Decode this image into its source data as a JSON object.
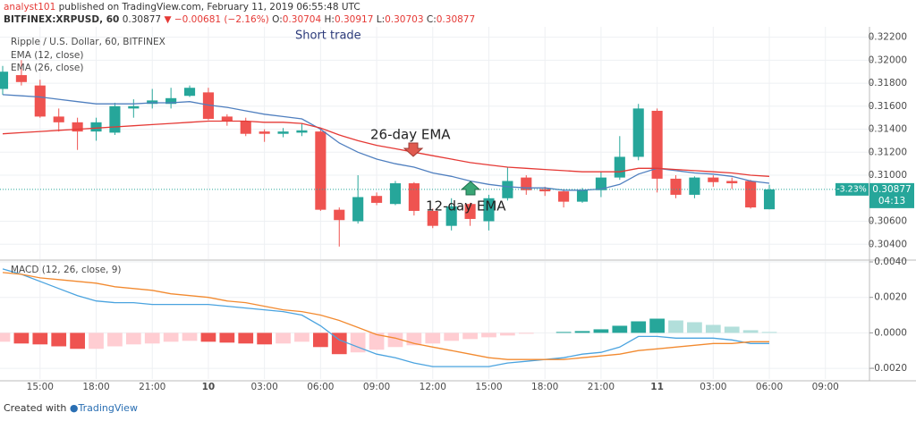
{
  "header": {
    "author": "analyst101",
    "published": "published on TradingView.com, February 11, 2019 06:55:48 UTC",
    "symbol": "BITFINEX:XRPUSD, 60",
    "price": "0.30877",
    "change": "▼ −0.00681 (−2.16%)",
    "ohlc": [
      {
        "label": "O:",
        "value": "0.30704"
      },
      {
        "label": "H:",
        "value": "0.30917"
      },
      {
        "label": "L:",
        "value": "0.30703"
      },
      {
        "label": "C:",
        "value": "0.30877"
      }
    ]
  },
  "footer": {
    "text": "Created with",
    "brand": "TradingView"
  },
  "chart_data": [
    {
      "type": "candlestick",
      "title": "Ripple / U.S. Dollar, 60, BITFINEX",
      "annotations": [
        "Short trade",
        "26-day EMA",
        "12-day EMA"
      ],
      "up_color": "#26a69a",
      "down_color": "#ef5350",
      "open": [
        0.3175,
        0.3187,
        0.3178,
        0.3151,
        0.3146,
        0.3138,
        0.3137,
        0.3158,
        0.3162,
        0.3162,
        0.3169,
        0.3172,
        0.3151,
        0.3147,
        0.3138,
        0.3136,
        0.3137,
        0.3138,
        0.307,
        0.306,
        0.3082,
        0.3075,
        0.3093,
        0.3069,
        0.3056,
        0.3075,
        0.306,
        0.308,
        0.3098,
        0.3088,
        0.3086,
        0.3077,
        0.3087,
        0.3098,
        0.3116,
        0.3156,
        0.3097,
        0.3083,
        0.3098,
        0.3095,
        0.3095,
        0.30704,
        null,
        null,
        null,
        null,
        null
      ],
      "high": [
        0.3195,
        0.32,
        0.3183,
        0.3158,
        0.315,
        0.315,
        0.3163,
        0.3166,
        0.3175,
        0.3176,
        0.3178,
        0.3176,
        0.3153,
        0.315,
        0.314,
        0.3141,
        0.3145,
        0.314,
        0.3072,
        0.31,
        0.3085,
        0.3095,
        0.3094,
        0.3071,
        0.308,
        0.3076,
        0.3083,
        0.3107,
        0.31,
        0.309,
        0.3088,
        0.3089,
        0.3103,
        0.3134,
        0.3162,
        0.3158,
        0.31,
        0.3099,
        0.31,
        0.3098,
        0.3096,
        0.30917,
        null,
        null,
        null,
        null,
        null
      ],
      "low": [
        0.317,
        0.3178,
        0.315,
        0.3138,
        0.3122,
        0.313,
        0.3135,
        0.315,
        0.3158,
        0.3158,
        0.3168,
        0.3148,
        0.3143,
        0.3134,
        0.3129,
        0.3133,
        0.3134,
        0.3069,
        0.3038,
        0.3058,
        0.3074,
        0.3074,
        0.3065,
        0.3054,
        0.3052,
        0.3056,
        0.3052,
        0.3078,
        0.3083,
        0.3082,
        0.3072,
        0.3076,
        0.3081,
        0.3096,
        0.3113,
        0.3085,
        0.308,
        0.308,
        0.309,
        0.3088,
        0.3071,
        0.30703,
        null,
        null,
        null,
        null,
        null
      ],
      "close": [
        0.319,
        0.3181,
        0.3151,
        0.3146,
        0.3138,
        0.3146,
        0.316,
        0.316,
        0.3165,
        0.3167,
        0.3176,
        0.3149,
        0.3147,
        0.3136,
        0.3136,
        0.3138,
        0.3139,
        0.307,
        0.3061,
        0.3081,
        0.3076,
        0.3093,
        0.3069,
        0.3056,
        0.3073,
        0.3062,
        0.308,
        0.3095,
        0.3087,
        0.3086,
        0.3077,
        0.3087,
        0.3098,
        0.3116,
        0.3158,
        0.3097,
        0.3083,
        0.3098,
        0.3094,
        0.3093,
        0.3072,
        0.30877,
        null,
        null,
        null,
        null,
        null
      ],
      "series": [
        {
          "name": "EMA (12, close)",
          "color": "#4f7fbf",
          "values": [
            0.317,
            0.3169,
            0.3168,
            0.3166,
            0.3164,
            0.3162,
            0.3162,
            0.3162,
            0.3163,
            0.3163,
            0.3164,
            0.3161,
            0.3159,
            0.3156,
            0.3153,
            0.3151,
            0.3149,
            0.314,
            0.3128,
            0.312,
            0.3114,
            0.311,
            0.3107,
            0.3102,
            0.3099,
            0.3095,
            0.3092,
            0.309,
            0.3089,
            0.3089,
            0.3087,
            0.3087,
            0.3088,
            0.3092,
            0.3101,
            0.3106,
            0.3104,
            0.3102,
            0.3101,
            0.3099,
            0.3095,
            0.3093,
            null,
            null,
            null,
            null,
            null
          ]
        },
        {
          "name": "EMA (26, close)",
          "color": "#e53935",
          "values": [
            0.3136,
            0.3137,
            0.3138,
            0.3139,
            0.314,
            0.3141,
            0.3142,
            0.3143,
            0.3144,
            0.3145,
            0.3146,
            0.3147,
            0.3147,
            0.3147,
            0.3146,
            0.3146,
            0.3145,
            0.3141,
            0.3135,
            0.313,
            0.3126,
            0.3123,
            0.312,
            0.3117,
            0.3114,
            0.3111,
            0.3109,
            0.3107,
            0.3106,
            0.3105,
            0.3104,
            0.3103,
            0.3103,
            0.3103,
            0.3106,
            0.3106,
            0.3105,
            0.3104,
            0.3103,
            0.3102,
            0.31,
            0.3099,
            null,
            null,
            null,
            null,
            null
          ]
        }
      ],
      "last_price": {
        "change": "-3.23%",
        "price": "0.30877",
        "countdown": "04:13",
        "color": "#26a69a"
      },
      "ylim": [
        0.3027,
        0.3229
      ],
      "yticks": [
        {
          "value": 0.322,
          "label": "0.32200"
        },
        {
          "value": 0.32,
          "label": "0.32000"
        },
        {
          "value": 0.318,
          "label": "0.31800"
        },
        {
          "value": 0.316,
          "label": "0.31600"
        },
        {
          "value": 0.314,
          "label": "0.31400"
        },
        {
          "value": 0.312,
          "label": "0.31200"
        },
        {
          "value": 0.31,
          "label": "0.31000"
        },
        {
          "value": 0.306,
          "label": "0.30600"
        },
        {
          "value": 0.304,
          "label": "0.30400"
        }
      ],
      "grid": true
    },
    {
      "type": "macd",
      "title": "MACD (12, 26, close, 9)",
      "categories": [
        null,
        null,
        "15:00",
        null,
        null,
        "18:00",
        null,
        null,
        "21:00",
        null,
        null,
        "10",
        null,
        null,
        "03:00",
        null,
        null,
        "06:00",
        null,
        null,
        "09:00",
        null,
        null,
        "12:00",
        null,
        null,
        "15:00",
        null,
        null,
        "18:00",
        null,
        null,
        "21:00",
        null,
        null,
        "11",
        null,
        null,
        "03:00",
        null,
        null,
        "06:00",
        null,
        null,
        "09:00",
        null,
        null
      ],
      "histogram": {
        "values": [
          -0.0005,
          -0.0006,
          -0.00065,
          -0.00076,
          -0.0009,
          -0.0009,
          -0.00076,
          -0.00065,
          -0.0006,
          -0.0005,
          -0.00045,
          -0.0005,
          -0.00055,
          -0.0006,
          -0.00065,
          -0.0006,
          -0.0005,
          -0.0008,
          -0.0012,
          -0.0011,
          -0.00095,
          -0.0008,
          -0.0007,
          -0.0006,
          -0.00045,
          -0.00035,
          -0.00025,
          -0.00015,
          -5e-05,
          0,
          5e-05,
          0.0001,
          0.0002,
          0.0004,
          0.00065,
          0.0008,
          0.0007,
          0.0006,
          0.00045,
          0.00035,
          0.00015,
          5e-05,
          null,
          null,
          null,
          null,
          null
        ],
        "colors": {
          "negative_falling": "#ef5350",
          "negative_rising": "#ffcdd2",
          "positive_rising": "#26a69a",
          "positive_falling": "#b2dfdb"
        }
      },
      "series": [
        {
          "color": "#4aa3df",
          "values": [
            0.0036,
            0.0033,
            0.0029,
            0.0025,
            0.0021,
            0.0018,
            0.0017,
            0.0017,
            0.0016,
            0.0016,
            0.0016,
            0.0016,
            0.0015,
            0.0014,
            0.0013,
            0.0012,
            0.001,
            0.0004,
            -0.0004,
            -0.0008,
            -0.0012,
            -0.0014,
            -0.0017,
            -0.0019,
            -0.0019,
            -0.0019,
            -0.0019,
            -0.0017,
            -0.0016,
            -0.0015,
            -0.0014,
            -0.0012,
            -0.0011,
            -0.0008,
            -0.0002,
            -0.0002,
            -0.0003,
            -0.0003,
            -0.0003,
            -0.0004,
            -0.0006,
            -0.0006,
            null,
            null,
            null,
            null,
            null
          ]
        },
        {
          "color": "#f28a30",
          "values": [
            0.0034,
            0.0033,
            0.0031,
            0.003,
            0.0029,
            0.0028,
            0.0026,
            0.0025,
            0.0024,
            0.0022,
            0.0021,
            0.002,
            0.0018,
            0.0017,
            0.0015,
            0.0013,
            0.0012,
            0.001,
            0.0007,
            0.0003,
            -0.0001,
            -0.0003,
            -0.0006,
            -0.0008,
            -0.001,
            -0.0012,
            -0.0014,
            -0.0015,
            -0.0015,
            -0.0015,
            -0.0015,
            -0.0014,
            -0.0013,
            -0.0012,
            -0.001,
            -0.0009,
            -0.0008,
            -0.0007,
            -0.0006,
            -0.0006,
            -0.0005,
            -0.0005,
            null,
            null,
            null,
            null,
            null
          ]
        }
      ],
      "ylim": [
        -0.0026,
        0.00405
      ],
      "yticks": [
        {
          "value": 0.004,
          "label": "0.0040"
        },
        {
          "value": 0.002,
          "label": "0.0020"
        },
        {
          "value": 0,
          "label": "0.0000"
        },
        {
          "value": -0.002,
          "label": "-0.0020"
        }
      ],
      "grid": true
    }
  ]
}
